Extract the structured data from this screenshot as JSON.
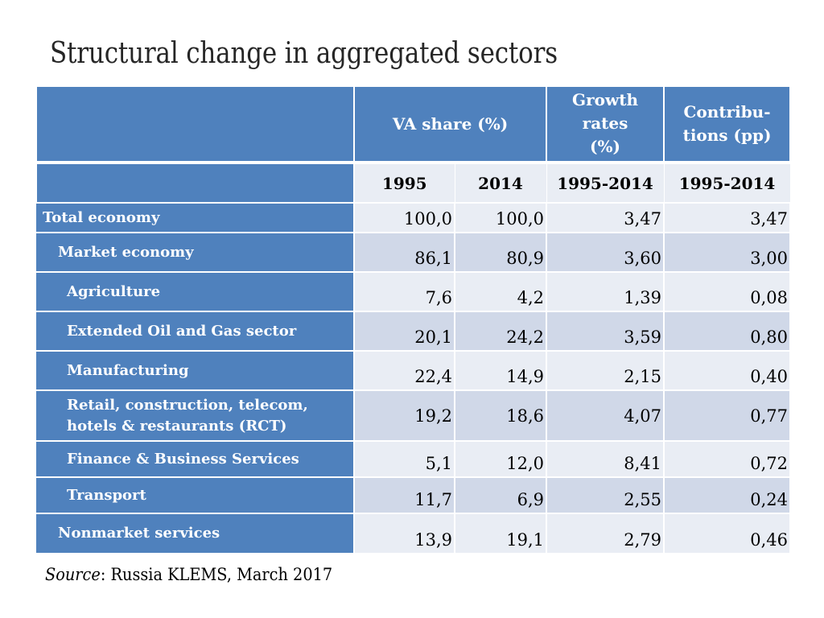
{
  "title": "Structural change in aggregated sectors",
  "header": {
    "va_share": "VA share (%)",
    "growth_rates": [
      "Growth",
      "rates",
      "(%)"
    ],
    "contributions": [
      "Contribu-",
      "tions (pp)"
    ]
  },
  "subheader": {
    "col1": "1995",
    "col2": "2014",
    "col3": "1995-2014",
    "col4": "1995-2014"
  },
  "rows": [
    {
      "label": "Total economy",
      "va1995": "100,0",
      "va2014": "100,0",
      "growth": "3,47",
      "contrib": "3,47"
    },
    {
      "label": "Market economy",
      "va1995": "86,1",
      "va2014": "80,9",
      "growth": "3,60",
      "contrib": "3,00"
    },
    {
      "label": "Agriculture",
      "va1995": "7,6",
      "va2014": "4,2",
      "growth": "1,39",
      "contrib": "0,08"
    },
    {
      "label": "Extended Oil and Gas sector",
      "va1995": "20,1",
      "va2014": "24,2",
      "growth": "3,59",
      "contrib": "0,80"
    },
    {
      "label": "Manufacturing",
      "va1995": "22,4",
      "va2014": "14,9",
      "growth": "2,15",
      "contrib": "0,40"
    },
    {
      "label_lines": [
        "Retail, construction, telecom,",
        "hotels & restaurants (RCT)"
      ],
      "va1995": "19,2",
      "va2014": "18,6",
      "growth": "4,07",
      "contrib": "0,77"
    },
    {
      "label": "Finance & Business Services",
      "va1995": "5,1",
      "va2014": "12,0",
      "growth": "8,41",
      "contrib": "0,72"
    },
    {
      "label": "Transport",
      "va1995": "11,7",
      "va2014": "6,9",
      "growth": "2,55",
      "contrib": "0,24"
    },
    {
      "label": "Nonmarket services",
      "va1995": "13,9",
      "va2014": "19,1",
      "growth": "2,79",
      "contrib": "0,46"
    }
  ],
  "source": {
    "label": "Source",
    "text": ": Russia KLEMS, March 2017"
  },
  "colors": {
    "header_blue": "#4f81bd",
    "row_light": "#e9edf4",
    "row_dark": "#d0d8e8"
  }
}
